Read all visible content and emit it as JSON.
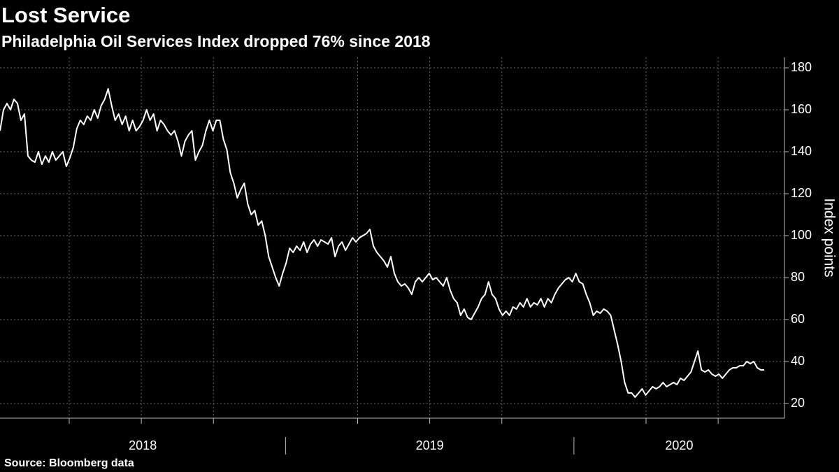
{
  "chart_data": {
    "type": "line",
    "title": "Lost Service",
    "subtitle": "Philadelphia Oil Services Index dropped 76% since 2018",
    "source": "Source: Bloomberg data",
    "y_axis_label": "Index points",
    "years": [
      2018,
      2019,
      2020
    ],
    "xlim": [
      2018.01,
      2020.73
    ],
    "xticks": [
      2018.25,
      2018.5,
      2018.75,
      2019,
      2019.25,
      2019.5,
      2019.75,
      2020,
      2020.25,
      2020.5
    ],
    "ylim": [
      13,
      185
    ],
    "yticks": [
      20,
      40,
      60,
      80,
      100,
      120,
      140,
      160,
      180
    ],
    "grid": true,
    "x": [
      2018.01,
      2018.0221,
      2018.0342,
      2018.0463,
      2018.0584,
      2018.0705,
      2018.0826,
      2018.0947,
      2018.1068,
      2018.1189,
      2018.131,
      2018.1431,
      2018.1552,
      2018.1673,
      2018.1794,
      2018.1915,
      2018.2036,
      2018.2157,
      2018.2278,
      2018.2399,
      2018.252,
      2018.2641,
      2018.2762,
      2018.2883,
      2018.3004,
      2018.3125,
      2018.3246,
      2018.3367,
      2018.3488,
      2018.3609,
      2018.373,
      2018.3851,
      2018.3972,
      2018.4093,
      2018.4214,
      2018.4335,
      2018.4456,
      2018.4577,
      2018.4698,
      2018.4819,
      2018.494,
      2018.5061,
      2018.5182,
      2018.5303,
      2018.5424,
      2018.5545,
      2018.5666,
      2018.5787,
      2018.5908,
      2018.6029,
      2018.615,
      2018.6271,
      2018.6392,
      2018.6513,
      2018.6634,
      2018.6755,
      2018.6876,
      2018.6997,
      2018.7118,
      2018.7239,
      2018.736,
      2018.7481,
      2018.7602,
      2018.7723,
      2018.7844,
      2018.7965,
      2018.8086,
      2018.8207,
      2018.8328,
      2018.8449,
      2018.857,
      2018.8691,
      2018.8812,
      2018.8933,
      2018.9054,
      2018.9175,
      2018.9296,
      2018.9417,
      2018.9538,
      2018.9659,
      2018.978,
      2018.9901,
      2019.0022,
      2019.0143,
      2019.0264,
      2019.0385,
      2019.0506,
      2019.0627,
      2019.0748,
      2019.0869,
      2019.099,
      2019.1111,
      2019.1232,
      2019.1353,
      2019.1474,
      2019.1595,
      2019.1716,
      2019.1837,
      2019.1958,
      2019.2079,
      2019.22,
      2019.2321,
      2019.2442,
      2019.2563,
      2019.2684,
      2019.2805,
      2019.2926,
      2019.3047,
      2019.3168,
      2019.3289,
      2019.341,
      2019.3531,
      2019.3652,
      2019.3773,
      2019.3894,
      2019.4015,
      2019.4136,
      2019.4257,
      2019.4378,
      2019.4499,
      2019.462,
      2019.4741,
      2019.4862,
      2019.4983,
      2019.5104,
      2019.5225,
      2019.5346,
      2019.5467,
      2019.5588,
      2019.5709,
      2019.583,
      2019.5951,
      2019.6072,
      2019.6193,
      2019.6314,
      2019.6435,
      2019.6556,
      2019.6677,
      2019.6798,
      2019.6919,
      2019.704,
      2019.7161,
      2019.7282,
      2019.7403,
      2019.7524,
      2019.7645,
      2019.7766,
      2019.7887,
      2019.8008,
      2019.8129,
      2019.825,
      2019.8371,
      2019.8492,
      2019.8613,
      2019.8734,
      2019.8855,
      2019.8976,
      2019.9097,
      2019.9218,
      2019.9339,
      2019.946,
      2019.9581,
      2019.9702,
      2019.9823,
      2019.9944,
      2020.0065,
      2020.0186,
      2020.0307,
      2020.0428,
      2020.0549,
      2020.067,
      2020.0791,
      2020.0912,
      2020.1033,
      2020.1154,
      2020.1275,
      2020.1396,
      2020.1517,
      2020.1638,
      2020.1759,
      2020.188,
      2020.2001,
      2020.2122,
      2020.2243,
      2020.2364,
      2020.2485,
      2020.2606,
      2020.2727,
      2020.2848,
      2020.2969,
      2020.309,
      2020.3211,
      2020.3332,
      2020.3453,
      2020.3574,
      2020.3695,
      2020.3816,
      2020.3937,
      2020.4058,
      2020.4179,
      2020.43,
      2020.4421,
      2020.4542,
      2020.4663,
      2020.4784,
      2020.4905,
      2020.5026,
      2020.5147,
      2020.5268,
      2020.5389,
      2020.551,
      2020.5631,
      2020.5752,
      2020.5873,
      2020.5994,
      2020.6115,
      2020.6236,
      2020.6357,
      2020.6478,
      2020.6599
    ],
    "series": [
      {
        "color": "#ffffff",
        "values": [
          150,
          160,
          163,
          160,
          165,
          163,
          155,
          158,
          138,
          136,
          135,
          140,
          134,
          138,
          135,
          140,
          136,
          138,
          140,
          133,
          137,
          142,
          151,
          155,
          153,
          157,
          155,
          160,
          156,
          162,
          165,
          170,
          162,
          155,
          158,
          153,
          157,
          150,
          155,
          150,
          152,
          155,
          160,
          155,
          158,
          150,
          155,
          153,
          150,
          148,
          150,
          145,
          138,
          145,
          148,
          150,
          136,
          140,
          143,
          150,
          155,
          150,
          155,
          155,
          146,
          141,
          130,
          125,
          118,
          122,
          125,
          115,
          110,
          112,
          105,
          107,
          100,
          90,
          85,
          80,
          76,
          82,
          87,
          94,
          92,
          95,
          93,
          97,
          92,
          96,
          98,
          95,
          98,
          97,
          96,
          99,
          90,
          95,
          97,
          93,
          96,
          99,
          97,
          99,
          100,
          101,
          103,
          95,
          92,
          90,
          88,
          85,
          90,
          82,
          78,
          76,
          77,
          75,
          72,
          78,
          80,
          78,
          80,
          82,
          79,
          80,
          78,
          76,
          80,
          74,
          70,
          68,
          62,
          65,
          61,
          60,
          63,
          66,
          70,
          72,
          78,
          72,
          70,
          65,
          62,
          64,
          62,
          66,
          65,
          68,
          66,
          70,
          66,
          68,
          67,
          70,
          66,
          70,
          68,
          72,
          75,
          77,
          79,
          80,
          78,
          82,
          78,
          77,
          72,
          68,
          62,
          64,
          63,
          65,
          64,
          62,
          55,
          48,
          40,
          30,
          25,
          25,
          23,
          25,
          27,
          24,
          26,
          28,
          27,
          28,
          30,
          28,
          29,
          30,
          29,
          32,
          31,
          33,
          35,
          40,
          45,
          36,
          35,
          36,
          34,
          33,
          34,
          32,
          34,
          36,
          37,
          37,
          38,
          38,
          40,
          39,
          40,
          37,
          36,
          36
        ]
      }
    ]
  }
}
